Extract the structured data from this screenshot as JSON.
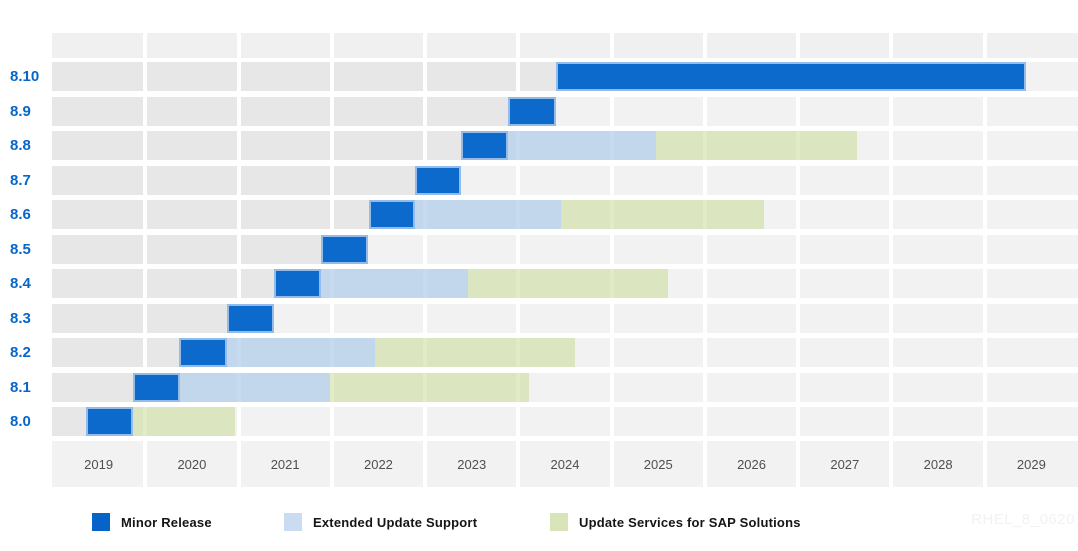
{
  "watermark": "RHEL_8_0620",
  "colors": {
    "minor_release": "#0663C7",
    "minor_release_border": "#9DC1EA",
    "extended_update_support": "#C4D6EC",
    "update_services_sap": "#DBE5BF",
    "version_label_text": "#0666CA",
    "axis_text": "#4F4F4F",
    "row_past_gray": "#E7E7E7",
    "row_future_gray": "#F2F2F2"
  },
  "chart_data": {
    "type": "gantt",
    "title": "",
    "xlabel": "",
    "ylabel": "",
    "x_axis": {
      "tick_labels": [
        "2019",
        "2020",
        "2021",
        "2022",
        "2023",
        "2024",
        "2025",
        "2026",
        "2027",
        "2028",
        "2029"
      ],
      "range_years": [
        2019,
        2030
      ],
      "grid": "white vertical separators per year"
    },
    "legend_position": "bottom",
    "legend": [
      {
        "type": "minor",
        "label": "Minor Release"
      },
      {
        "type": "eus",
        "label": "Extended Update Support"
      },
      {
        "type": "sap",
        "label": "Update Services for SAP Solutions"
      }
    ],
    "rows": [
      {
        "version": "8.10",
        "segments": [
          {
            "type": "minor",
            "start": 2024.4,
            "end": 2029.44
          }
        ]
      },
      {
        "version": "8.9",
        "segments": [
          {
            "type": "minor",
            "start": 2023.89,
            "end": 2024.4
          }
        ]
      },
      {
        "version": "8.8",
        "segments": [
          {
            "type": "minor",
            "start": 2023.38,
            "end": 2023.89
          },
          {
            "type": "eus",
            "start": 2023.89,
            "end": 2025.48
          },
          {
            "type": "sap",
            "start": 2025.48,
            "end": 2027.63
          }
        ]
      },
      {
        "version": "8.7",
        "segments": [
          {
            "type": "minor",
            "start": 2022.89,
            "end": 2023.39
          }
        ]
      },
      {
        "version": "8.6",
        "segments": [
          {
            "type": "minor",
            "start": 2022.4,
            "end": 2022.89
          },
          {
            "type": "eus",
            "start": 2022.89,
            "end": 2024.46
          },
          {
            "type": "sap",
            "start": 2024.46,
            "end": 2026.63
          }
        ]
      },
      {
        "version": "8.5",
        "segments": [
          {
            "type": "minor",
            "start": 2021.88,
            "end": 2022.39
          }
        ]
      },
      {
        "version": "8.4",
        "segments": [
          {
            "type": "minor",
            "start": 2021.38,
            "end": 2021.88
          },
          {
            "type": "eus",
            "start": 2021.88,
            "end": 2023.46
          },
          {
            "type": "sap",
            "start": 2023.46,
            "end": 2025.6
          }
        ]
      },
      {
        "version": "8.3",
        "segments": [
          {
            "type": "minor",
            "start": 2020.88,
            "end": 2021.38
          }
        ]
      },
      {
        "version": "8.2",
        "segments": [
          {
            "type": "minor",
            "start": 2020.36,
            "end": 2020.88
          },
          {
            "type": "eus",
            "start": 2020.88,
            "end": 2022.46
          },
          {
            "type": "sap",
            "start": 2022.46,
            "end": 2024.61
          }
        ]
      },
      {
        "version": "8.1",
        "segments": [
          {
            "type": "minor",
            "start": 2019.87,
            "end": 2020.37
          },
          {
            "type": "eus",
            "start": 2020.37,
            "end": 2021.98
          },
          {
            "type": "sap",
            "start": 2021.98,
            "end": 2024.11
          }
        ]
      },
      {
        "version": "8.0",
        "segments": [
          {
            "type": "minor",
            "start": 2019.36,
            "end": 2019.87
          },
          {
            "type": "sap",
            "start": 2019.87,
            "end": 2020.96
          }
        ]
      }
    ]
  }
}
